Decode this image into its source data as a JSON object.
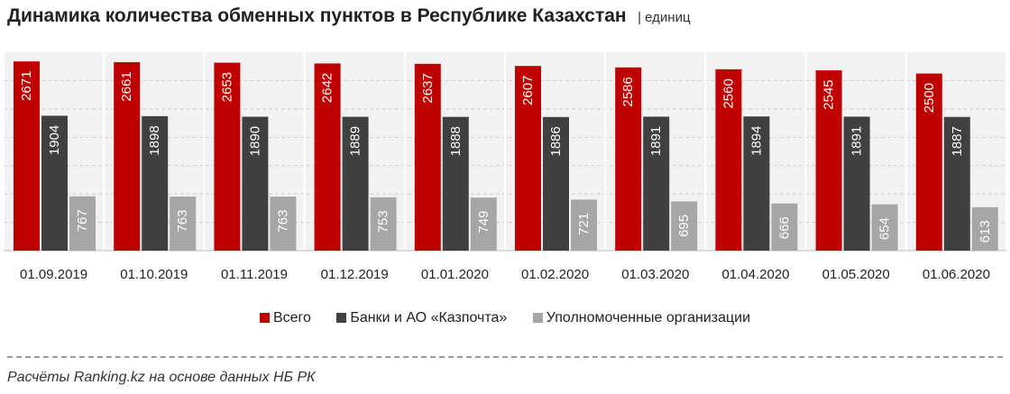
{
  "chart_data": {
    "type": "bar",
    "title": "Динамика количества обменных пунктов в Республике Казахстан",
    "unit": "| единиц",
    "categories": [
      "01.09.2019",
      "01.10.2019",
      "01.11.2019",
      "01.12.2019",
      "01.01.2020",
      "01.02.2020",
      "01.03.2020",
      "01.04.2020",
      "01.05.2020",
      "01.06.2020"
    ],
    "series": [
      {
        "name": "Всего",
        "color": "#c00000",
        "values": [
          2671,
          2661,
          2653,
          2642,
          2637,
          2607,
          2586,
          2560,
          2545,
          2500
        ]
      },
      {
        "name": "Банки и АО «Казпочта»",
        "color": "#404040",
        "values": [
          1904,
          1898,
          1890,
          1889,
          1888,
          1886,
          1891,
          1894,
          1891,
          1887
        ]
      },
      {
        "name": "Уполномоченные организации",
        "color": "#a6a6a6",
        "values": [
          767,
          763,
          763,
          753,
          749,
          721,
          695,
          666,
          654,
          613
        ]
      }
    ],
    "ylim": [
      0,
      2800
    ],
    "grid": true,
    "legend_position": "bottom",
    "background_color": "#f2f2f2"
  },
  "source_note": "Расчёты Ranking.kz на основе данных НБ РК"
}
